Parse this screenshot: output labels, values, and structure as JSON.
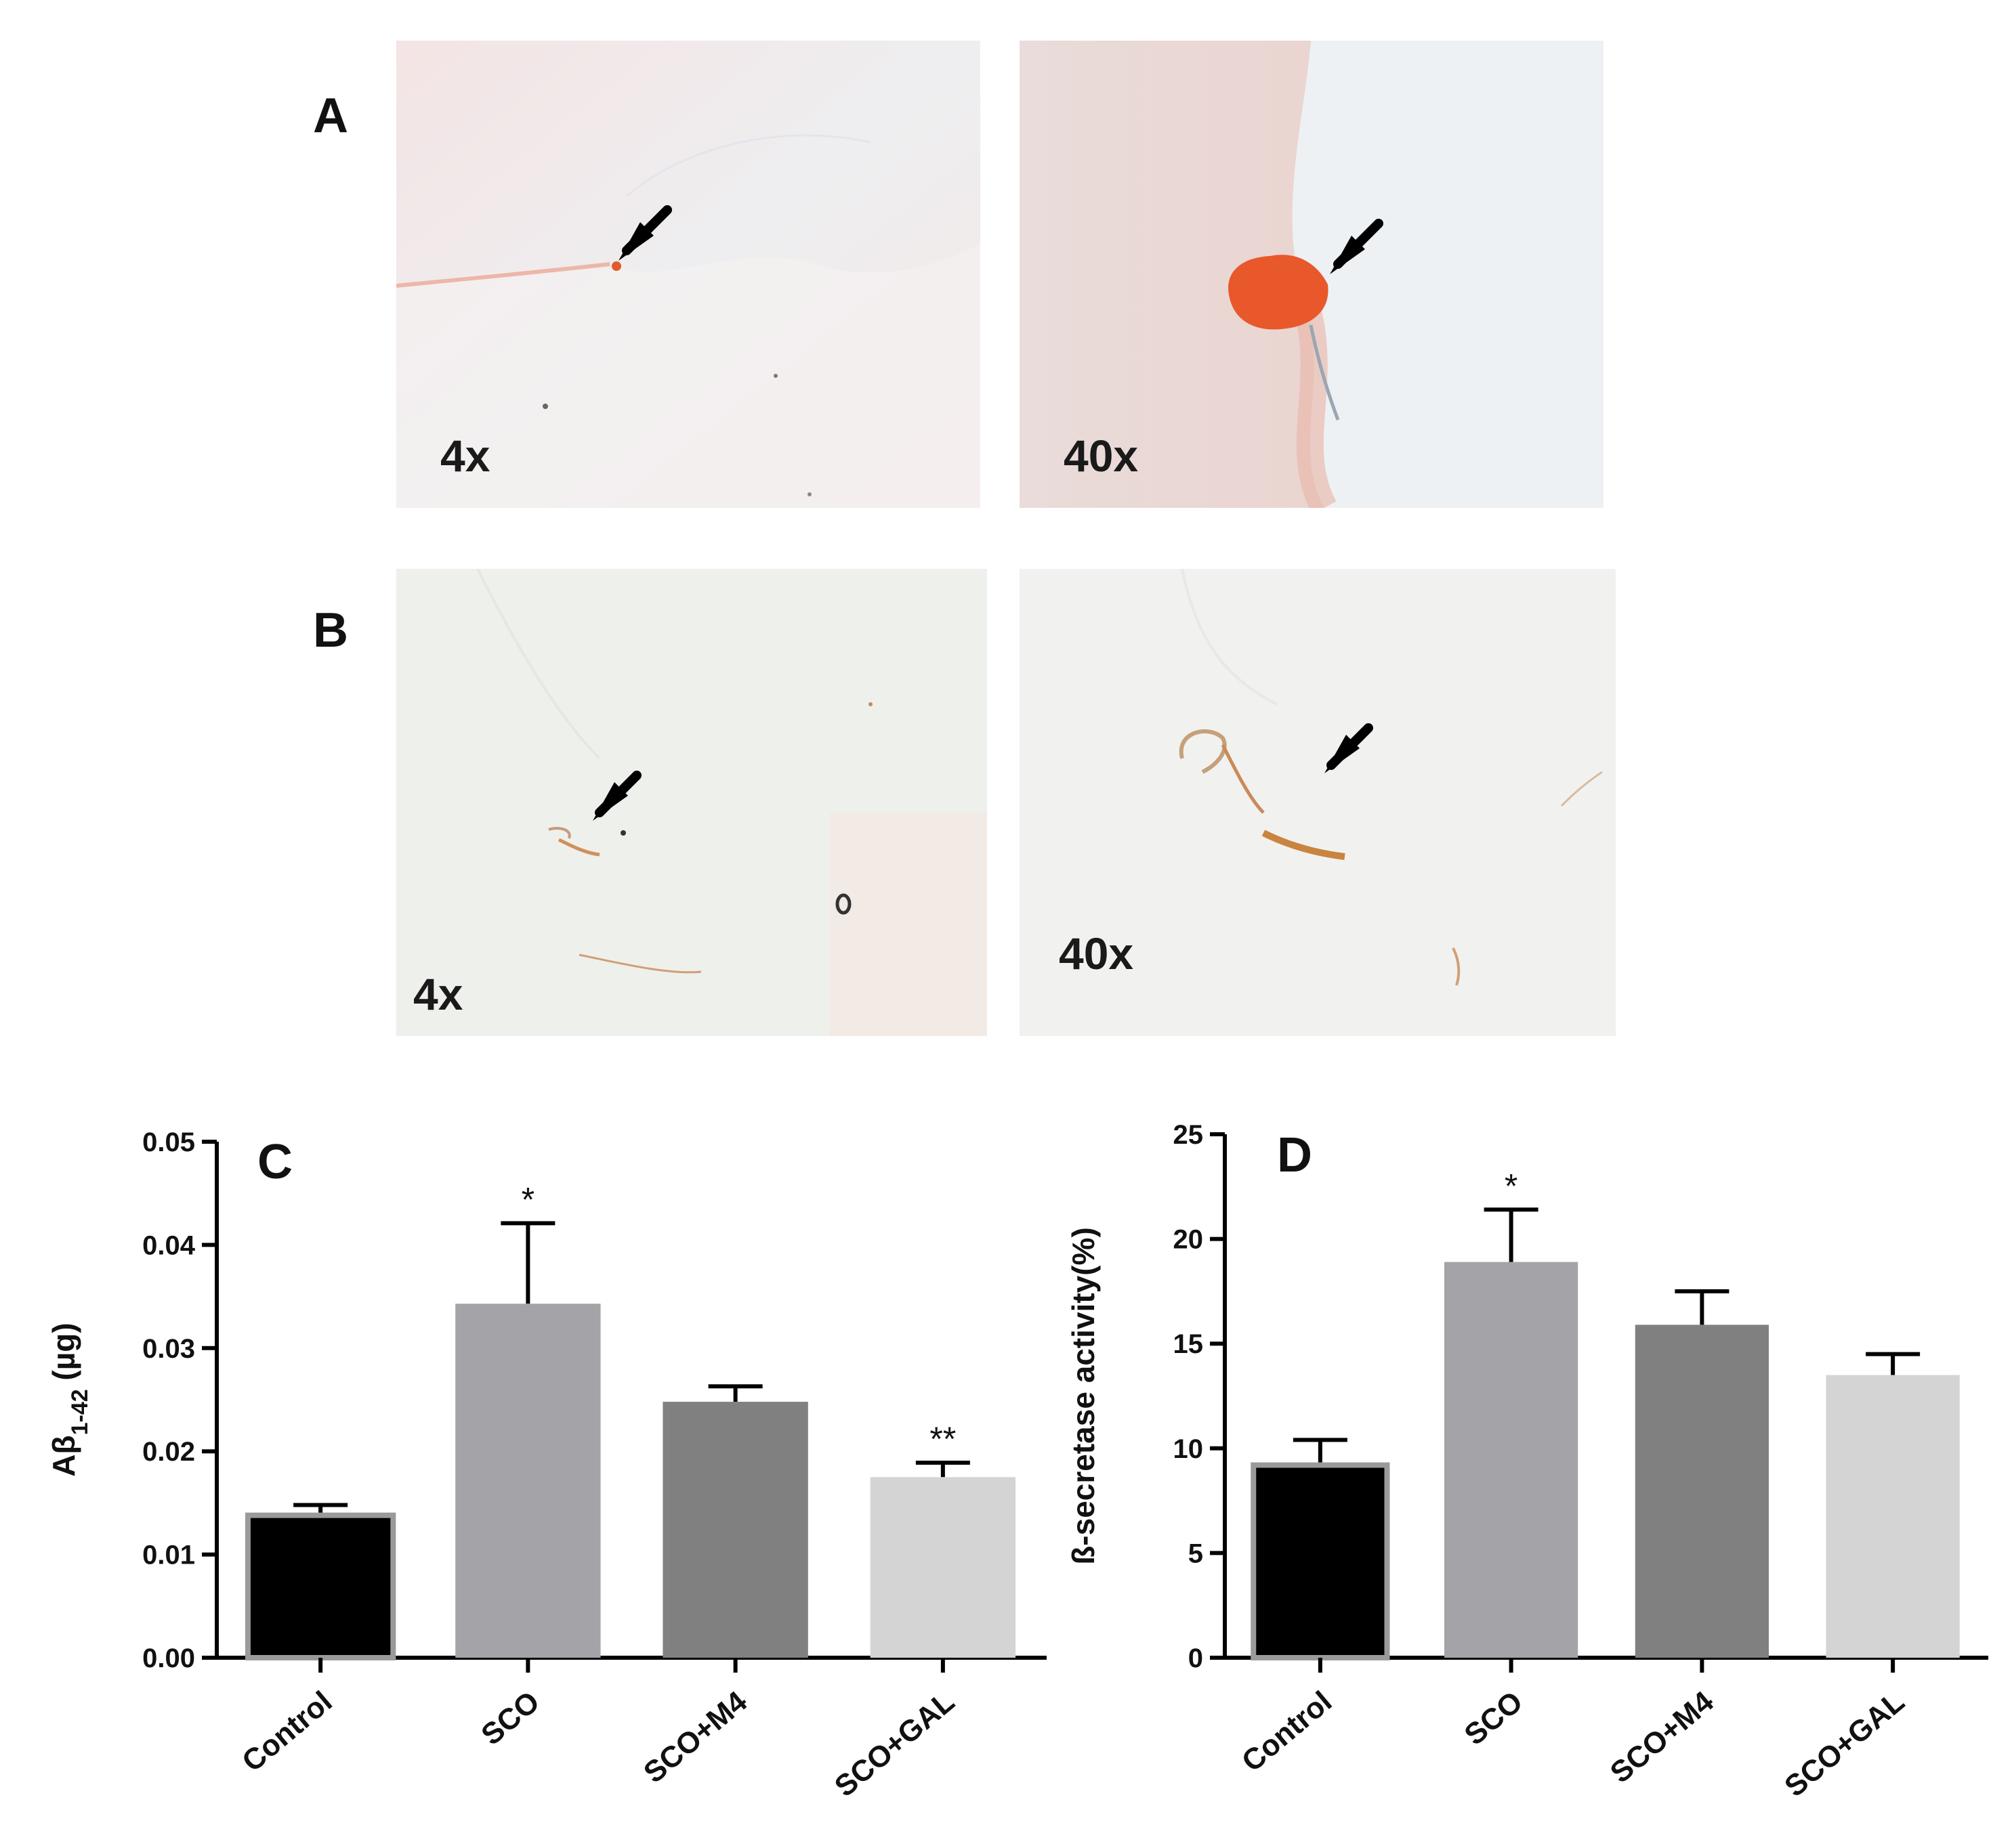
{
  "panels": {
    "A": {
      "label": "A",
      "images": [
        {
          "magnification": "4x",
          "tint": "#f1e4e4"
        },
        {
          "magnification": "40x",
          "tint": "#ead9d6"
        }
      ]
    },
    "B": {
      "label": "B",
      "images": [
        {
          "magnification": "4x",
          "tint": "#eef0ec"
        },
        {
          "magnification": "40x",
          "tint": "#f1f2ef"
        }
      ]
    }
  },
  "chart_data": [
    {
      "panel": "C",
      "type": "bar",
      "categories": [
        "Control",
        "SCO",
        "SCO+M4",
        "SCO+GAL"
      ],
      "values": [
        0.0138,
        0.0343,
        0.0248,
        0.0175
      ],
      "errors": [
        0.001,
        0.0078,
        0.0015,
        0.0014
      ],
      "annotations": [
        "",
        "*",
        "",
        "**"
      ],
      "ylabel_main": "Aβ",
      "ylabel_sub": "1-42",
      "ylabel_unit": " (µg)",
      "ylim": [
        0,
        0.05
      ],
      "yticks": [
        "0.00",
        "0.01",
        "0.02",
        "0.03",
        "0.04",
        "0.05"
      ],
      "colors": [
        "#000000",
        "#a4a3a8",
        "#808080",
        "#d4d4d4"
      ]
    },
    {
      "panel": "D",
      "type": "bar",
      "categories": [
        "Control",
        "SCO",
        "SCO+M4",
        "SCO+GAL"
      ],
      "values": [
        9.2,
        18.9,
        15.9,
        13.5
      ],
      "errors": [
        1.2,
        2.5,
        1.6,
        1.0
      ],
      "annotations": [
        "",
        "*",
        "",
        ""
      ],
      "ylabel": "ß-secretase activity(%)",
      "ylim": [
        0,
        25
      ],
      "yticks": [
        "0",
        "5",
        "10",
        "15",
        "20",
        "25"
      ],
      "colors": [
        "#000000",
        "#a4a3a8",
        "#808080",
        "#d4d4d4"
      ]
    }
  ]
}
